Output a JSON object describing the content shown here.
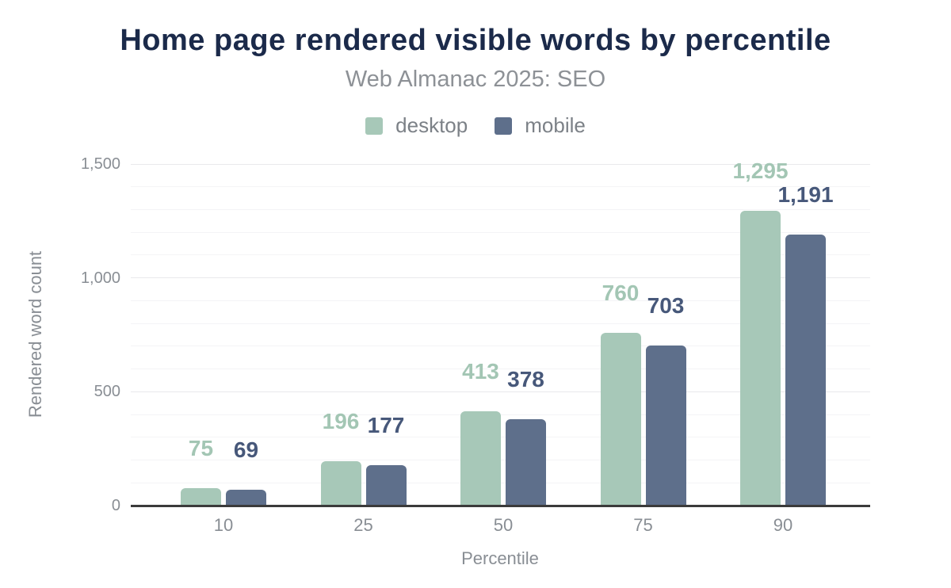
{
  "chart_data": {
    "type": "bar",
    "title": "Home page rendered visible words by percentile",
    "subtitle": "Web Almanac 2025: SEO",
    "xlabel": "Percentile",
    "ylabel": "Rendered word count",
    "categories": [
      "10",
      "25",
      "50",
      "75",
      "90"
    ],
    "series": [
      {
        "name": "desktop",
        "color": "#a7c8b8",
        "label_color": "#a3c6b4",
        "values": [
          75,
          196,
          413,
          760,
          1295
        ],
        "labels": [
          "75",
          "196",
          "413",
          "760",
          "1,295"
        ]
      },
      {
        "name": "mobile",
        "color": "#5e6f8b",
        "label_color": "#47587a",
        "values": [
          69,
          177,
          378,
          703,
          1191
        ],
        "labels": [
          "69",
          "177",
          "378",
          "703",
          "1,191"
        ]
      }
    ],
    "ylim": [
      0,
      1500
    ],
    "y_ticks": [
      {
        "value": 0,
        "label": "0"
      },
      {
        "value": 500,
        "label": "500"
      },
      {
        "value": 1000,
        "label": "1,000"
      },
      {
        "value": 1500,
        "label": "1,500"
      }
    ],
    "gridlines": {
      "show": true,
      "minor_step": 100,
      "major_step": 500
    },
    "legend_position": "top"
  },
  "colors": {
    "title": "#1b2a4a",
    "subtitle": "#8d9196",
    "axis_text": "#898e94",
    "axis_line": "#3b3b3b",
    "grid_major": "#e9e9ec",
    "grid_minor": "#f4f4f6",
    "background": "#ffffff"
  }
}
